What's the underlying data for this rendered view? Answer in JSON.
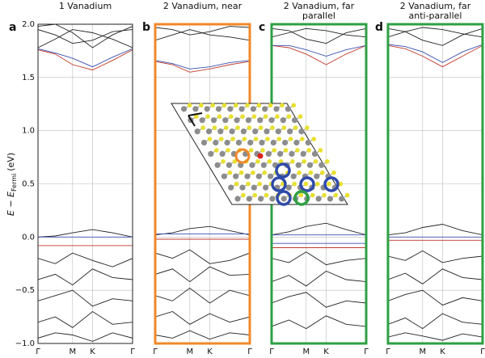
{
  "chart_data": [
    {
      "type": "line",
      "letter": "a",
      "title": [
        "1 Vanadium"
      ],
      "frame_color": "#222",
      "ylabel": "E − E",
      "ylabel_sub": "Fermi",
      "ylabel_unit": "(eV)",
      "xlim": [
        0,
        1.577
      ],
      "xticks": [
        {
          "value": 0,
          "label": "Γ"
        },
        {
          "value": 0.577,
          "label": "M"
        },
        {
          "value": 0.91,
          "label": "K"
        },
        {
          "value": 1.577,
          "label": "Γ"
        }
      ],
      "ylim": [
        -1,
        2
      ],
      "yticks": [
        {
          "value": -1,
          "label": "−1.0"
        },
        {
          "value": -0.5,
          "label": "−0.5"
        },
        {
          "value": 0,
          "label": "0.0"
        },
        {
          "value": 0.5,
          "label": "0.5"
        },
        {
          "value": 1,
          "label": "1.0"
        },
        {
          "value": 1.5,
          "label": "1.5"
        },
        {
          "value": 2,
          "label": "2.0"
        }
      ],
      "grid": true,
      "x": [
        0,
        0.289,
        0.577,
        0.91,
        1.243,
        1.577
      ],
      "series": [
        {
          "color": "#222",
          "values": [
            1.78,
            1.86,
            1.95,
            1.92,
            1.86,
            1.78
          ]
        },
        {
          "color": "#222",
          "values": [
            1.95,
            1.9,
            1.82,
            1.85,
            1.93,
            1.95
          ]
        },
        {
          "color": "#222",
          "values": [
            1.98,
            2.0,
            1.92,
            1.78,
            1.9,
            1.98
          ]
        },
        {
          "color": "#c0392b",
          "values": [
            1.76,
            1.72,
            1.62,
            1.57,
            1.66,
            1.76
          ]
        },
        {
          "color": "#3a4fb0",
          "values": [
            1.77,
            1.73,
            1.68,
            1.6,
            1.69,
            1.77
          ]
        },
        {
          "color": "#222",
          "values": [
            0.0,
            0.01,
            0.04,
            0.07,
            0.04,
            0.0
          ]
        },
        {
          "color": "#3a4fb0",
          "values": [
            0.0,
            0.0,
            0.0,
            0.0,
            0.0,
            0.0
          ]
        },
        {
          "color": "#c0392b",
          "values": [
            -0.08,
            -0.08,
            -0.08,
            -0.08,
            -0.08,
            -0.08
          ]
        },
        {
          "color": "#222",
          "values": [
            -0.2,
            -0.25,
            -0.15,
            -0.22,
            -0.28,
            -0.2
          ]
        },
        {
          "color": "#222",
          "values": [
            -0.4,
            -0.35,
            -0.45,
            -0.3,
            -0.38,
            -0.4
          ]
        },
        {
          "color": "#222",
          "values": [
            -0.6,
            -0.55,
            -0.5,
            -0.65,
            -0.58,
            -0.6
          ]
        },
        {
          "color": "#222",
          "values": [
            -0.8,
            -0.75,
            -0.85,
            -0.7,
            -0.82,
            -0.8
          ]
        },
        {
          "color": "#222",
          "values": [
            -0.95,
            -0.9,
            -0.92,
            -0.98,
            -0.9,
            -0.95
          ]
        }
      ]
    },
    {
      "type": "line",
      "letter": "b",
      "title": [
        "2 Vanadium, near"
      ],
      "frame_color": "#f0882a",
      "xlim": [
        0,
        1.577
      ],
      "xticks": [
        {
          "value": 0,
          "label": "Γ"
        },
        {
          "value": 0.577,
          "label": "M"
        },
        {
          "value": 0.91,
          "label": "K"
        },
        {
          "value": 1.577,
          "label": "Γ"
        }
      ],
      "ylim": [
        -1,
        2
      ],
      "yticks": [
        -1,
        -0.5,
        0,
        0.5,
        1,
        1.5,
        2
      ],
      "grid": true,
      "x": [
        0,
        0.289,
        0.577,
        0.91,
        1.243,
        1.577
      ],
      "series": [
        {
          "color": "#222",
          "values": [
            1.85,
            1.9,
            1.95,
            1.9,
            1.88,
            1.85
          ]
        },
        {
          "color": "#222",
          "values": [
            1.97,
            1.95,
            1.9,
            1.93,
            1.98,
            1.97
          ]
        },
        {
          "color": "#c0392b",
          "values": [
            1.65,
            1.62,
            1.55,
            1.58,
            1.62,
            1.65
          ]
        },
        {
          "color": "#3a4fb0",
          "values": [
            1.66,
            1.63,
            1.58,
            1.6,
            1.64,
            1.66
          ]
        },
        {
          "color": "#222",
          "values": [
            0.02,
            0.04,
            0.08,
            0.1,
            0.06,
            0.02
          ]
        },
        {
          "color": "#3a4fb0",
          "values": [
            0.03,
            0.03,
            0.03,
            0.03,
            0.03,
            0.03
          ]
        },
        {
          "color": "#c0392b",
          "values": [
            -0.02,
            -0.02,
            -0.02,
            -0.02,
            -0.02,
            -0.02
          ]
        },
        {
          "color": "#222",
          "values": [
            -0.15,
            -0.2,
            -0.12,
            -0.25,
            -0.22,
            -0.15
          ]
        },
        {
          "color": "#222",
          "values": [
            -0.35,
            -0.3,
            -0.42,
            -0.28,
            -0.36,
            -0.35
          ]
        },
        {
          "color": "#222",
          "values": [
            -0.55,
            -0.6,
            -0.48,
            -0.62,
            -0.5,
            -0.55
          ]
        },
        {
          "color": "#222",
          "values": [
            -0.75,
            -0.7,
            -0.82,
            -0.72,
            -0.8,
            -0.75
          ]
        },
        {
          "color": "#222",
          "values": [
            -0.92,
            -0.95,
            -0.88,
            -0.96,
            -0.9,
            -0.92
          ]
        }
      ]
    },
    {
      "type": "line",
      "letter": "c",
      "title": [
        "2 Vanadium, far",
        "parallel"
      ],
      "frame_color": "#2ea043",
      "xlim": [
        0,
        1.577
      ],
      "xticks": [
        {
          "value": 0,
          "label": "Γ"
        },
        {
          "value": 0.577,
          "label": "M"
        },
        {
          "value": 0.91,
          "label": "K"
        },
        {
          "value": 1.577,
          "label": "Γ"
        }
      ],
      "ylim": [
        -1,
        2
      ],
      "yticks": [
        -1,
        -0.5,
        0,
        0.5,
        1,
        1.5,
        2
      ],
      "grid": true,
      "x": [
        0,
        0.289,
        0.577,
        0.91,
        1.243,
        1.577
      ],
      "series": [
        {
          "color": "#222",
          "values": [
            1.88,
            1.92,
            1.96,
            1.94,
            1.9,
            1.88
          ]
        },
        {
          "color": "#222",
          "values": [
            1.96,
            1.94,
            1.86,
            1.82,
            1.92,
            1.96
          ]
        },
        {
          "color": "#c0392b",
          "values": [
            1.8,
            1.78,
            1.72,
            1.62,
            1.72,
            1.8
          ]
        },
        {
          "color": "#3a4fb0",
          "values": [
            1.8,
            1.8,
            1.76,
            1.7,
            1.76,
            1.8
          ]
        },
        {
          "color": "#222",
          "values": [
            0.02,
            0.05,
            0.1,
            0.13,
            0.07,
            0.02
          ]
        },
        {
          "color": "#3a4fb0",
          "values": [
            0.02,
            0.02,
            0.02,
            0.02,
            0.02,
            0.02
          ]
        },
        {
          "color": "#3a4fb0",
          "values": [
            -0.06,
            -0.06,
            -0.06,
            -0.06,
            -0.06,
            -0.06
          ]
        },
        {
          "color": "#c0392b",
          "values": [
            -0.1,
            -0.1,
            -0.1,
            -0.1,
            -0.1,
            -0.1
          ]
        },
        {
          "color": "#222",
          "values": [
            -0.2,
            -0.24,
            -0.14,
            -0.26,
            -0.22,
            -0.2
          ]
        },
        {
          "color": "#222",
          "values": [
            -0.42,
            -0.36,
            -0.46,
            -0.32,
            -0.4,
            -0.42
          ]
        },
        {
          "color": "#222",
          "values": [
            -0.62,
            -0.56,
            -0.52,
            -0.66,
            -0.6,
            -0.62
          ]
        },
        {
          "color": "#222",
          "values": [
            -0.84,
            -0.78,
            -0.86,
            -0.74,
            -0.82,
            -0.84
          ]
        }
      ]
    },
    {
      "type": "line",
      "letter": "d",
      "title": [
        "2 Vanadium, far",
        "anti-parallel"
      ],
      "frame_color": "#2ea043",
      "xlim": [
        0,
        1.577
      ],
      "xticks": [
        {
          "value": 0,
          "label": "Γ"
        },
        {
          "value": 0.577,
          "label": "M"
        },
        {
          "value": 0.91,
          "label": "K"
        },
        {
          "value": 1.577,
          "label": "Γ"
        }
      ],
      "ylim": [
        -1,
        2
      ],
      "yticks": [
        -1,
        -0.5,
        0,
        0.5,
        1,
        1.5,
        2
      ],
      "grid": true,
      "x": [
        0,
        0.289,
        0.577,
        0.91,
        1.243,
        1.577
      ],
      "series": [
        {
          "color": "#222",
          "values": [
            1.88,
            1.93,
            1.97,
            1.95,
            1.91,
            1.88
          ]
        },
        {
          "color": "#222",
          "values": [
            1.96,
            1.93,
            1.85,
            1.8,
            1.9,
            1.96
          ]
        },
        {
          "color": "#c0392b",
          "values": [
            1.8,
            1.77,
            1.7,
            1.6,
            1.7,
            1.8
          ]
        },
        {
          "color": "#3a4fb0",
          "values": [
            1.81,
            1.79,
            1.74,
            1.64,
            1.74,
            1.81
          ]
        },
        {
          "color": "#222",
          "values": [
            0.02,
            0.04,
            0.09,
            0.12,
            0.06,
            0.02
          ]
        },
        {
          "color": "#3a4fb0",
          "values": [
            0.0,
            0.0,
            0.0,
            0.0,
            0.0,
            0.0
          ]
        },
        {
          "color": "#c0392b",
          "values": [
            -0.03,
            -0.03,
            -0.03,
            -0.03,
            -0.03,
            -0.03
          ]
        },
        {
          "color": "#222",
          "values": [
            -0.18,
            -0.22,
            -0.13,
            -0.24,
            -0.2,
            -0.18
          ]
        },
        {
          "color": "#222",
          "values": [
            -0.4,
            -0.34,
            -0.44,
            -0.3,
            -0.38,
            -0.4
          ]
        },
        {
          "color": "#222",
          "values": [
            -0.6,
            -0.54,
            -0.5,
            -0.64,
            -0.57,
            -0.6
          ]
        },
        {
          "color": "#222",
          "values": [
            -0.82,
            -0.76,
            -0.86,
            -0.72,
            -0.8,
            -0.82
          ]
        },
        {
          "color": "#222",
          "values": [
            -0.94,
            -0.9,
            -0.93,
            -0.97,
            -0.91,
            -0.94
          ]
        }
      ]
    }
  ]
}
